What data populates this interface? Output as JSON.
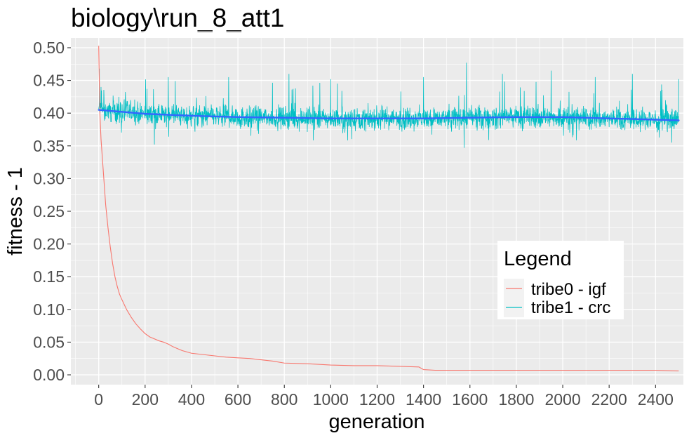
{
  "chart_data": {
    "type": "line",
    "title": "biology\\run_8_att1",
    "xlabel": "generation",
    "ylabel": "fitness - 1",
    "xlim": [
      -120,
      2520
    ],
    "ylim": [
      -0.015,
      0.515
    ],
    "x_ticks": [
      0,
      200,
      400,
      600,
      800,
      1000,
      1200,
      1400,
      1600,
      1800,
      2000,
      2200,
      2400
    ],
    "y_ticks": [
      0.0,
      0.05,
      0.1,
      0.15,
      0.2,
      0.25,
      0.3,
      0.35,
      0.4,
      0.45,
      0.5
    ],
    "grid": true,
    "legend": {
      "title": "Legend",
      "position": "right",
      "entries": [
        {
          "label": "tribe0 - igf",
          "color": "#F8766D"
        },
        {
          "label": "tribe1 - crc",
          "color": "#00BFC4"
        }
      ]
    },
    "series": [
      {
        "name": "tribe0 - igf",
        "color": "#F8766D",
        "x": [
          0,
          2,
          5,
          10,
          20,
          30,
          40,
          50,
          60,
          70,
          80,
          90,
          100,
          120,
          140,
          160,
          180,
          200,
          220,
          240,
          260,
          280,
          300,
          320,
          340,
          360,
          380,
          400,
          450,
          500,
          550,
          600,
          650,
          700,
          750,
          800,
          900,
          1000,
          1100,
          1200,
          1300,
          1380,
          1400,
          1450,
          1500,
          1600,
          1800,
          2000,
          2200,
          2400,
          2500
        ],
        "y": [
          0.503,
          0.46,
          0.4,
          0.36,
          0.31,
          0.26,
          0.225,
          0.195,
          0.17,
          0.15,
          0.135,
          0.123,
          0.115,
          0.1,
          0.088,
          0.078,
          0.07,
          0.063,
          0.058,
          0.055,
          0.052,
          0.05,
          0.047,
          0.043,
          0.04,
          0.037,
          0.035,
          0.033,
          0.031,
          0.029,
          0.027,
          0.026,
          0.025,
          0.023,
          0.021,
          0.018,
          0.017,
          0.015,
          0.014,
          0.014,
          0.013,
          0.012,
          0.008,
          0.007,
          0.007,
          0.007,
          0.007,
          0.007,
          0.007,
          0.007,
          0.006
        ]
      },
      {
        "name": "tribe1 - crc",
        "color": "#00BFC4",
        "x_range": [
          0,
          2500
        ],
        "trend_x": [
          0,
          200,
          400,
          600,
          800,
          1000,
          1200,
          1400,
          1600,
          1800,
          2000,
          2200,
          2400,
          2500
        ],
        "trend_y": [
          0.405,
          0.399,
          0.396,
          0.394,
          0.393,
          0.392,
          0.392,
          0.392,
          0.393,
          0.394,
          0.394,
          0.392,
          0.39,
          0.389
        ],
        "noise_amplitude": 0.012,
        "spikes": [
          {
            "x": 3,
            "y": 0.468
          },
          {
            "x": 10,
            "y": 0.44
          },
          {
            "x": 1585,
            "y": 0.477
          },
          {
            "x": 300,
            "y": 0.455
          },
          {
            "x": 560,
            "y": 0.455
          },
          {
            "x": 820,
            "y": 0.46
          },
          {
            "x": 1000,
            "y": 0.452
          },
          {
            "x": 1400,
            "y": 0.455
          },
          {
            "x": 1740,
            "y": 0.46
          },
          {
            "x": 1950,
            "y": 0.465
          },
          {
            "x": 2140,
            "y": 0.455
          },
          {
            "x": 2300,
            "y": 0.46
          },
          {
            "x": 2500,
            "y": 0.452
          },
          {
            "x": 1575,
            "y": 0.347
          },
          {
            "x": 240,
            "y": 0.352
          },
          {
            "x": 2470,
            "y": 0.355
          }
        ]
      },
      {
        "name": "",
        "color": "#3366FF",
        "x": [
          0,
          200,
          400,
          600,
          800,
          1000,
          1200,
          1400,
          1600,
          1800,
          2000,
          2200,
          2400,
          2500
        ],
        "y": [
          0.405,
          0.399,
          0.396,
          0.394,
          0.393,
          0.392,
          0.392,
          0.392,
          0.393,
          0.394,
          0.394,
          0.392,
          0.39,
          0.389
        ]
      }
    ]
  }
}
